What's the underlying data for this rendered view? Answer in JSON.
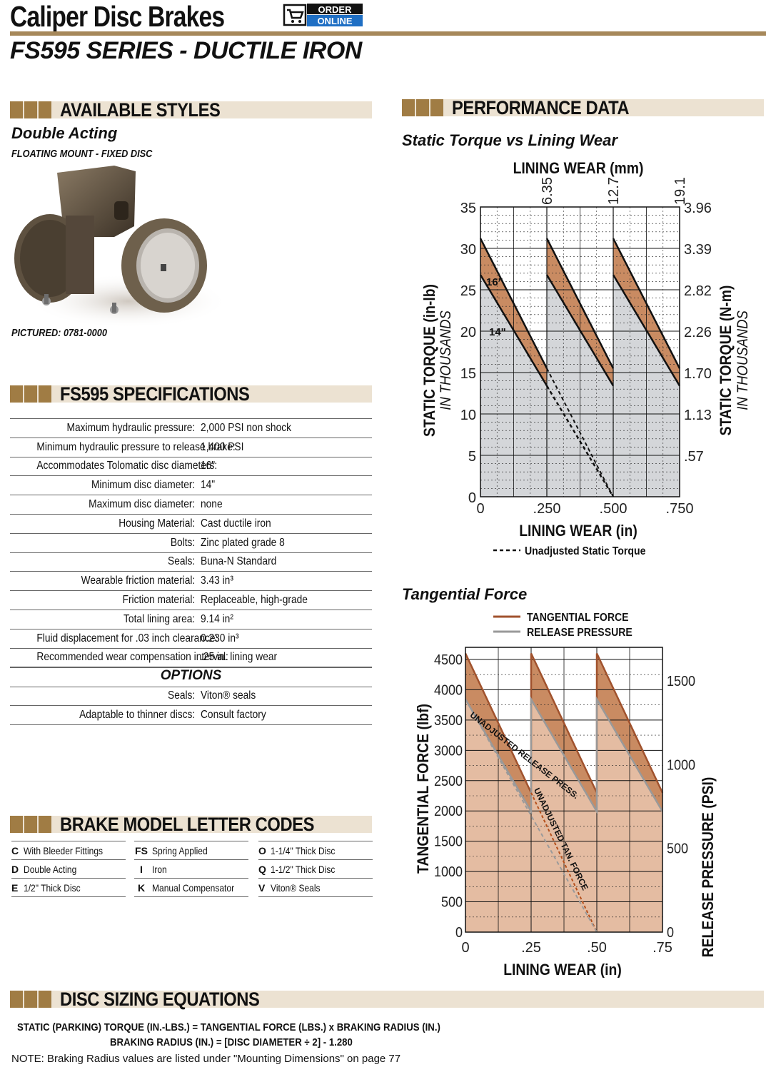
{
  "header": {
    "title": "Caliper Disc Brakes",
    "order_badge": {
      "line1": "ORDER",
      "line2": "ONLINE",
      "icon": "shopping-cart-icon"
    },
    "subtitle": "FS595 SERIES - DUCTILE IRON"
  },
  "styles": {
    "section_title": "AVAILABLE STYLES",
    "style_name": "Double Acting",
    "mount": "FLOATING MOUNT - FIXED DISC",
    "pictured": "PICTURED: 0781-0000"
  },
  "specs": {
    "section_title": "FS595 SPECIFICATIONS",
    "rows": [
      {
        "label": "Maximum hydraulic pressure:",
        "value": "2,000 PSI non shock"
      },
      {
        "label": "Minimum hydraulic pressure to release brake:",
        "value": "1,400 PSI"
      },
      {
        "label": "Accommodates Tolomatic disc diameters:",
        "value": "16\""
      },
      {
        "label": "Minimum disc diameter:",
        "value": "14\""
      },
      {
        "label": "Maximum disc diameter:",
        "value": "none"
      },
      {
        "label": "Housing Material:",
        "value": "Cast ductile iron"
      },
      {
        "label": "Bolts:",
        "value": "Zinc plated grade 8"
      },
      {
        "label": "Seals:",
        "value": "Buna-N Standard"
      },
      {
        "label": "Wearable friction material:",
        "value": "3.43 in³"
      },
      {
        "label": "Friction material:",
        "value": "Replaceable, high-grade"
      },
      {
        "label": "Total lining area:",
        "value": "9.14 in²"
      },
      {
        "label": "Fluid displacement for .03 inch clearance:",
        "value": "0.230 in³"
      },
      {
        "label": "Recommended wear compensation interval:",
        "value": ".25 in. lining wear"
      }
    ],
    "options_title": "OPTIONS",
    "options": [
      {
        "label": "Seals:",
        "value": "Viton® seals"
      },
      {
        "label": "Adaptable to thinner discs:",
        "value": "Consult factory"
      }
    ]
  },
  "codes": {
    "section_title": "BRAKE MODEL LETTER CODES",
    "columns": [
      [
        {
          "code": "C",
          "desc": "With Bleeder Fittings"
        },
        {
          "code": "D",
          "desc": "Double Acting"
        },
        {
          "code": "E",
          "desc": "1/2\" Thick Disc"
        }
      ],
      [
        {
          "code": "FS",
          "desc": "Spring Applied"
        },
        {
          "code": "I",
          "desc": "Iron"
        },
        {
          "code": "K",
          "desc": "Manual Compensator"
        }
      ],
      [
        {
          "code": "O",
          "desc": "1-1/4\" Thick Disc"
        },
        {
          "code": "Q",
          "desc": "1-1/2\" Thick Disc"
        },
        {
          "code": "V",
          "desc": "Viton® Seals"
        }
      ]
    ]
  },
  "performance": {
    "section_title": "PERFORMANCE DATA",
    "chart1_title": "Static Torque vs Lining Wear",
    "chart2_title": "Tangential Force"
  },
  "equations": {
    "section_title": "DISC SIZING EQUATIONS",
    "line1": "STATIC (PARKING) TORQUE (IN.-LBS.) =  TANGENTIAL FORCE (LBS.) x BRAKING RADIUS (IN.)",
    "line2": "BRAKING RADIUS (IN.) =  [DISC DIAMETER ÷ 2] - 1.280",
    "note": "NOTE: Braking Radius values are listed under \"Mounting Dimensions\" on page 77"
  },
  "chart_data": [
    {
      "type": "area",
      "title": "Static Torque vs Lining Wear",
      "xlabel": "LINING WEAR (in)",
      "x2label": "LINING WEAR (mm)",
      "ylabel": "STATIC TORQUE (in-lb)",
      "ylabel_sub": "IN THOUSANDS",
      "y2label": "STATIC TORQUE (N-m)",
      "y2label_sub": "IN THOUSANDS",
      "xlim": [
        0,
        0.75
      ],
      "ylim": [
        0,
        35
      ],
      "x_ticks": [
        "0",
        ".250",
        ".500",
        ".750"
      ],
      "x2_ticks": [
        "6.35",
        "12.7",
        "19.1"
      ],
      "y_ticks": [
        "0",
        "5",
        "10",
        "15",
        "20",
        "25",
        "30",
        "35"
      ],
      "y2_ticks": [
        ".57",
        "1.13",
        "1.70",
        "2.26",
        "2.82",
        "3.39",
        "3.96"
      ],
      "grid": true,
      "band_labels": [
        "16\"",
        "14\""
      ],
      "series": [
        {
          "name": "16\"",
          "x": [
            0,
            0.25,
            0.25,
            0.5,
            0.5,
            0.75
          ],
          "y": [
            31.2,
            15.5,
            31.2,
            15.5,
            31.2,
            15.5
          ]
        },
        {
          "name": "14\"",
          "x": [
            0,
            0.25,
            0.25,
            0.5,
            0.5,
            0.75
          ],
          "y": [
            26.8,
            13.4,
            26.8,
            13.4,
            26.8,
            13.4
          ]
        },
        {
          "name": "Unadjusted Static Torque",
          "x": [
            0.25,
            0.5
          ],
          "y": [
            13.4,
            0
          ]
        }
      ],
      "legend": [
        "Unadjusted Static Torque"
      ]
    },
    {
      "type": "line",
      "title": "Tangential Force",
      "xlabel": "LINING WEAR (in)",
      "ylabel": "TANGENTIAL FORCE (lbf)",
      "y2label": "RELEASE PRESSURE (PSI)",
      "xlim": [
        0,
        0.75
      ],
      "ylim": [
        0,
        4700
      ],
      "y2lim": [
        0,
        1700
      ],
      "x_ticks": [
        "0",
        ".25",
        ".50",
        ".75"
      ],
      "y_ticks": [
        "0",
        "500",
        "1000",
        "1500",
        "2000",
        "2500",
        "3000",
        "3500",
        "4000",
        "4500"
      ],
      "y2_ticks": [
        "0",
        "500",
        "1000",
        "1500"
      ],
      "grid": true,
      "series": [
        {
          "name": "TANGENTIAL FORCE",
          "color": "#a0522d",
          "x": [
            0,
            0.25,
            0.25,
            0.5,
            0.5,
            0.75
          ],
          "y": [
            4600,
            2300,
            4600,
            2300,
            4600,
            2300
          ]
        },
        {
          "name": "RELEASE PRESSURE",
          "color": "#999999",
          "axis": "y2",
          "x": [
            0,
            0.25,
            0.25,
            0.5,
            0.5,
            0.75
          ],
          "y": [
            1390,
            720,
            1390,
            720,
            1390,
            720
          ]
        },
        {
          "name": "UNADJUSTED TAN. FORCE",
          "x": [
            0.25,
            0.5
          ],
          "y": [
            2300,
            0
          ]
        },
        {
          "name": "UNADJUSTED RELEASE PRESS.",
          "axis": "y2",
          "x": [
            0.25,
            0.5
          ],
          "y": [
            720,
            0
          ]
        }
      ],
      "legend": [
        "TANGENTIAL FORCE",
        "RELEASE PRESSURE"
      ]
    }
  ]
}
